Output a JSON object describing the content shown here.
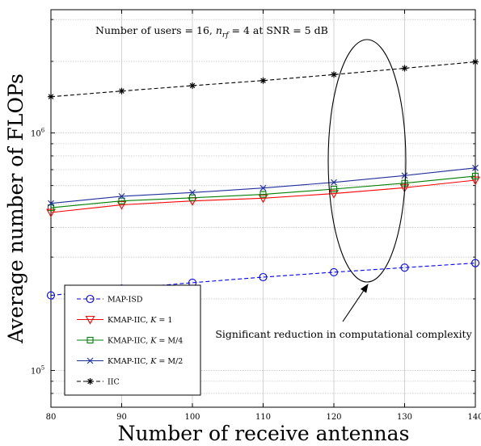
{
  "chart_data": {
    "type": "line",
    "xlabel": "Number of receive antennas",
    "ylabel": "Average number of FLOPs",
    "x": [
      80,
      90,
      100,
      110,
      120,
      130,
      140
    ],
    "xlim": [
      80,
      140
    ],
    "ylim": [
      70000,
      3300000
    ],
    "yscale": "log",
    "xticks": [
      "80",
      "90",
      "100",
      "110",
      "120",
      "130",
      "140"
    ],
    "yticks": [
      {
        "value": 100000,
        "base": "10",
        "exp": "5"
      },
      {
        "value": 1000000,
        "base": "10",
        "exp": "6"
      }
    ],
    "grid": true,
    "legend_position": "lower-left",
    "series": [
      {
        "name": "MAP-ISD",
        "color": "#0000ff",
        "dash": "dashed",
        "marker": "circle",
        "values": [
          207000,
          221000,
          234000,
          247000,
          259000,
          271000,
          283000
        ]
      },
      {
        "name": "KMAP-IIC, K = 1",
        "color": "#ff0000",
        "dash": "solid",
        "marker": "triangle-down",
        "values": [
          462000,
          498000,
          517000,
          531000,
          555000,
          588000,
          632000
        ]
      },
      {
        "name": "KMAP-IIC, K = M/4",
        "color": "#008000",
        "dash": "solid",
        "marker": "square",
        "values": [
          484000,
          517000,
          533000,
          551000,
          580000,
          614000,
          658000
        ]
      },
      {
        "name": "KMAP-IIC, K = M/2",
        "color": "#1f2f9f",
        "dash": "solid",
        "marker": "x",
        "values": [
          505000,
          541000,
          561000,
          586000,
          619000,
          661000,
          712000
        ]
      },
      {
        "name": "IIC",
        "color": "#000000",
        "dash": "dashed",
        "marker": "asterisk",
        "values": [
          1420000,
          1500000,
          1580000,
          1660000,
          1760000,
          1870000,
          1990000
        ]
      }
    ],
    "legend": [
      {
        "prefix": "MAP-ISD",
        "italic": "",
        "suffix": ""
      },
      {
        "prefix": "KMAP-IIC, ",
        "italic": "K",
        "suffix": " = 1"
      },
      {
        "prefix": "KMAP-IIC, ",
        "italic": "K",
        "suffix": " = M/4"
      },
      {
        "prefix": "KMAP-IIC, ",
        "italic": "K",
        "suffix": " = M/2"
      },
      {
        "prefix": "IIC",
        "italic": "",
        "suffix": ""
      }
    ],
    "annotations": {
      "top": {
        "part1": "Number of users = 16, ",
        "n": "n",
        "sub": "rf",
        "part2": " = 4 at SNR = 5 dB"
      },
      "reduction": "Significant reduction in computational complexity"
    }
  }
}
